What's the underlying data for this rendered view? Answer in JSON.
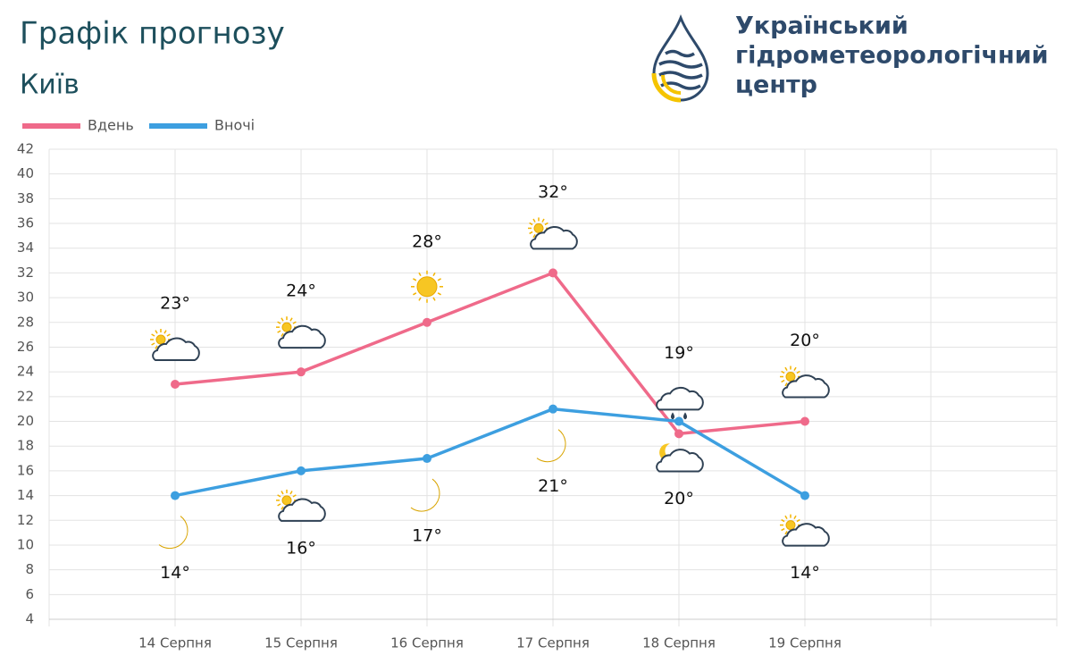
{
  "chart_data": {
    "type": "line",
    "title": "Графік прогнозу",
    "subtitle": "Київ",
    "categories": [
      null,
      "14 Серпня",
      "15 Серпня",
      "16 Серпня",
      "17 Серпня",
      "18 Серпня",
      "19 Серпня",
      null,
      null
    ],
    "series": [
      {
        "name": "Вдень",
        "color": "#ef6a8a",
        "values": [
          null,
          23,
          24,
          28,
          32,
          19,
          20,
          null,
          null
        ],
        "value_labels": [
          null,
          "23°",
          "24°",
          "28°",
          "32°",
          "19°",
          "20°",
          null,
          null
        ]
      },
      {
        "name": "Вночі",
        "color": "#3d9fe0",
        "values": [
          null,
          14,
          16,
          17,
          21,
          20,
          14,
          null,
          null
        ],
        "value_labels": [
          null,
          "14°",
          "16°",
          "17°",
          "21°",
          "20°",
          "14°",
          null,
          null
        ]
      }
    ],
    "ylim": [
      4,
      42
    ],
    "yticks": [
      4,
      6,
      8,
      10,
      12,
      14,
      16,
      18,
      20,
      22,
      24,
      26,
      28,
      30,
      32,
      34,
      36,
      38,
      40,
      42
    ],
    "grid": true,
    "legend": "top-left"
  },
  "logo": {
    "lines": [
      "Український",
      "гідрометеорологічний",
      "центр"
    ]
  }
}
